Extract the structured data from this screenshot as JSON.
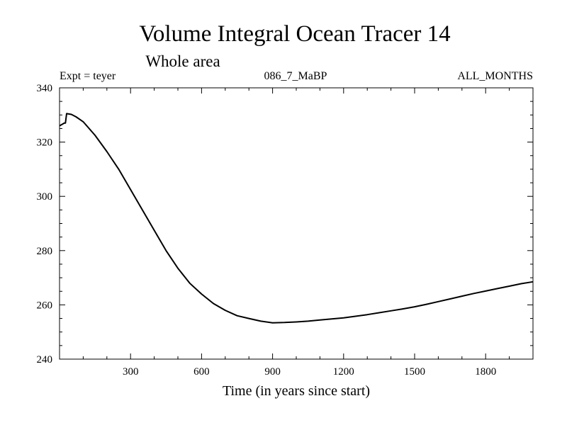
{
  "chart_data": {
    "type": "line",
    "title": "Volume Integral Ocean Tracer 14",
    "subtitle": "Whole area",
    "experiment_label": "Expt = teyer",
    "run_label": "086_7_MaBP",
    "months_label": "ALL_MONTHS",
    "xlabel": "Time (in years since start)",
    "ylabel": "",
    "xlim": [
      0,
      2000
    ],
    "ylim": [
      240,
      340
    ],
    "x_ticks": [
      300,
      600,
      900,
      1200,
      1500,
      1800
    ],
    "y_ticks": [
      240,
      260,
      280,
      300,
      320,
      340
    ],
    "grid": false,
    "series": [
      {
        "name": "Tracer 14",
        "color": "#000000",
        "x": [
          0,
          10,
          20,
          25,
          30,
          50,
          70,
          100,
          150,
          200,
          250,
          300,
          350,
          400,
          450,
          500,
          550,
          600,
          650,
          700,
          750,
          800,
          850,
          900,
          950,
          1000,
          1050,
          1100,
          1150,
          1200,
          1250,
          1300,
          1350,
          1400,
          1450,
          1500,
          1550,
          1600,
          1650,
          1700,
          1750,
          1800,
          1850,
          1900,
          1950,
          2000
        ],
        "values": [
          326,
          326.5,
          327,
          327,
          330.5,
          330.2,
          329.3,
          327.5,
          322.5,
          316.5,
          310,
          302.5,
          295,
          287.5,
          280,
          273.5,
          268,
          264,
          260.5,
          258,
          256,
          255,
          254,
          253.4,
          253.5,
          253.7,
          254,
          254.4,
          254.8,
          255.2,
          255.8,
          256.4,
          257.1,
          257.8,
          258.5,
          259.3,
          260.2,
          261.2,
          262.2,
          263.2,
          264.2,
          265.1,
          266,
          266.9,
          267.8,
          268.5
        ]
      }
    ]
  }
}
